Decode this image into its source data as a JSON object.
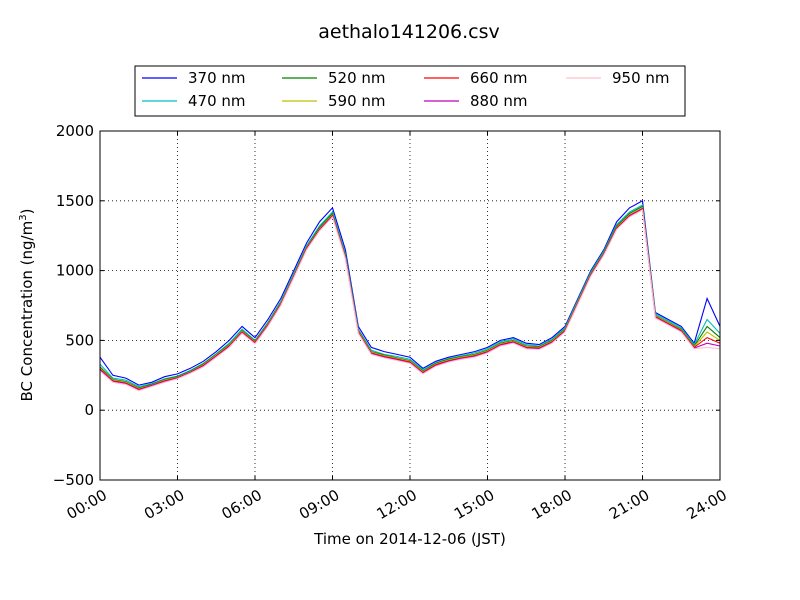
{
  "chart_data": {
    "type": "line",
    "title": "aethalo141206.csv",
    "xlabel": "Time on 2014-12-06 (JST)",
    "ylabel_main": "BC Concentration (ng/m",
    "ylabel_sup": "3",
    "ylabel_tail": ")",
    "xlim_hours": [
      0,
      24
    ],
    "ylim": [
      -500,
      2000
    ],
    "x_ticks": [
      {
        "h": 0,
        "label": "00:00"
      },
      {
        "h": 3,
        "label": "03:00"
      },
      {
        "h": 6,
        "label": "06:00"
      },
      {
        "h": 9,
        "label": "09:00"
      },
      {
        "h": 12,
        "label": "12:00"
      },
      {
        "h": 15,
        "label": "15:00"
      },
      {
        "h": 18,
        "label": "18:00"
      },
      {
        "h": 21,
        "label": "21:00"
      },
      {
        "h": 24,
        "label": "24:00"
      }
    ],
    "y_ticks": [
      {
        "v": -500,
        "label": "−500"
      },
      {
        "v": 0,
        "label": "0"
      },
      {
        "v": 500,
        "label": "500"
      },
      {
        "v": 1000,
        "label": "1000"
      },
      {
        "v": 1500,
        "label": "1500"
      },
      {
        "v": 2000,
        "label": "2000"
      }
    ],
    "grid": true,
    "legend_position": "top",
    "x_hours": [
      0,
      0.5,
      1,
      1.5,
      2,
      2.5,
      3,
      3.5,
      4,
      4.5,
      5,
      5.5,
      6,
      6.5,
      7,
      7.5,
      8,
      8.5,
      9,
      9.5,
      10,
      10.5,
      11,
      11.5,
      12,
      12.5,
      13,
      13.5,
      14,
      14.5,
      15,
      15.5,
      16,
      16.5,
      17,
      17.5,
      18,
      18.5,
      19,
      19.5,
      20,
      20.5,
      21,
      21.5,
      22,
      22.5,
      23,
      23.5,
      24
    ],
    "series": [
      {
        "name": "370 nm",
        "color": "#0000ff",
        "values": [
          380,
          250,
          230,
          180,
          200,
          240,
          260,
          300,
          350,
          420,
          500,
          600,
          520,
          650,
          800,
          1000,
          1200,
          1350,
          1450,
          1150,
          600,
          450,
          420,
          400,
          380,
          300,
          350,
          380,
          400,
          420,
          450,
          500,
          520,
          480,
          470,
          520,
          600,
          800,
          1000,
          1150,
          1350,
          1450,
          1500,
          700,
          650,
          600,
          480,
          800,
          600
        ]
      },
      {
        "name": "470 nm",
        "color": "#00bfbf",
        "values": [
          330,
          230,
          215,
          170,
          190,
          225,
          245,
          285,
          335,
          405,
          480,
          580,
          500,
          630,
          780,
          980,
          1180,
          1320,
          1420,
          1120,
          580,
          430,
          400,
          385,
          365,
          290,
          340,
          370,
          390,
          410,
          440,
          490,
          510,
          470,
          460,
          510,
          590,
          790,
          990,
          1140,
          1330,
          1420,
          1470,
          690,
          640,
          590,
          470,
          650,
          550
        ]
      },
      {
        "name": "520 nm",
        "color": "#008000",
        "values": [
          310,
          220,
          205,
          160,
          185,
          220,
          240,
          280,
          330,
          400,
          470,
          570,
          495,
          620,
          770,
          970,
          1170,
          1310,
          1410,
          1110,
          570,
          420,
          395,
          375,
          355,
          280,
          335,
          365,
          385,
          400,
          430,
          480,
          500,
          460,
          455,
          500,
          580,
          780,
          980,
          1130,
          1320,
          1410,
          1460,
          680,
          630,
          580,
          460,
          600,
          520
        ]
      },
      {
        "name": "590 nm",
        "color": "#bfbf00",
        "values": [
          300,
          215,
          200,
          155,
          180,
          215,
          235,
          275,
          325,
          395,
          465,
          565,
          490,
          615,
          765,
          965,
          1165,
          1300,
          1400,
          1100,
          565,
          415,
          390,
          370,
          350,
          275,
          330,
          360,
          380,
          395,
          425,
          475,
          495,
          455,
          450,
          495,
          575,
          775,
          975,
          1125,
          1310,
          1400,
          1450,
          675,
          625,
          575,
          455,
          560,
          500
        ]
      },
      {
        "name": "660 nm",
        "color": "#ff0000",
        "values": [
          295,
          210,
          195,
          150,
          178,
          210,
          232,
          272,
          320,
          390,
          460,
          560,
          485,
          610,
          760,
          960,
          1160,
          1295,
          1395,
          1095,
          560,
          410,
          385,
          365,
          345,
          270,
          325,
          355,
          375,
          390,
          420,
          470,
          490,
          450,
          445,
          490,
          570,
          770,
          970,
          1120,
          1305,
          1395,
          1445,
          670,
          620,
          570,
          450,
          520,
          480
        ]
      },
      {
        "name": "880 nm",
        "color": "#bf00bf",
        "values": [
          290,
          205,
          190,
          145,
          175,
          205,
          230,
          270,
          315,
          385,
          455,
          555,
          480,
          605,
          755,
          955,
          1155,
          1290,
          1390,
          1090,
          555,
          405,
          380,
          360,
          340,
          265,
          320,
          350,
          370,
          385,
          415,
          465,
          485,
          445,
          440,
          485,
          565,
          765,
          965,
          1115,
          1300,
          1390,
          1440,
          665,
          615,
          565,
          445,
          480,
          460
        ]
      },
      {
        "name": "950 nm",
        "color": "#ffc0cb",
        "values": [
          280,
          200,
          185,
          140,
          170,
          200,
          225,
          265,
          310,
          380,
          450,
          550,
          475,
          600,
          750,
          950,
          1150,
          1285,
          1385,
          1085,
          550,
          400,
          375,
          355,
          335,
          260,
          315,
          345,
          365,
          380,
          410,
          460,
          480,
          440,
          435,
          480,
          560,
          760,
          960,
          1110,
          1295,
          1385,
          1435,
          660,
          610,
          560,
          440,
          450,
          440
        ]
      }
    ]
  }
}
